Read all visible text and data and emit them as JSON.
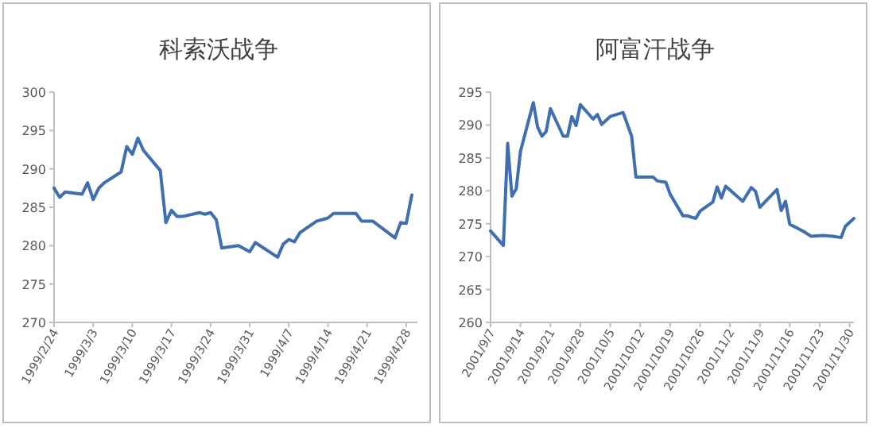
{
  "chart_data": [
    {
      "type": "line",
      "title": "科索沃战争",
      "x": [
        "1999-02-24",
        "1999-02-25",
        "1999-02-26",
        "1999-03-01",
        "1999-03-02",
        "1999-03-03",
        "1999-03-04",
        "1999-03-05",
        "1999-03-08",
        "1999-03-09",
        "1999-03-10",
        "1999-03-11",
        "1999-03-12",
        "1999-03-15",
        "1999-03-16",
        "1999-03-17",
        "1999-03-18",
        "1999-03-19",
        "1999-03-22",
        "1999-03-23",
        "1999-03-24",
        "1999-03-25",
        "1999-03-26",
        "1999-03-29",
        "1999-03-30",
        "1999-03-31",
        "1999-04-01",
        "1999-04-05",
        "1999-04-06",
        "1999-04-07",
        "1999-04-08",
        "1999-04-09",
        "1999-04-12",
        "1999-04-13",
        "1999-04-14",
        "1999-04-15",
        "1999-04-19",
        "1999-04-20",
        "1999-04-22",
        "1999-04-26",
        "1999-04-27",
        "1999-04-28",
        "1999-04-29"
      ],
      "series": [
        {
          "color": "#3f6fae",
          "values": [
            287.5,
            286.3,
            287.0,
            286.7,
            288.2,
            286.0,
            287.5,
            288.2,
            289.6,
            292.9,
            291.9,
            294.0,
            292.4,
            289.8,
            283.0,
            284.6,
            283.8,
            283.8,
            284.3,
            284.1,
            284.3,
            283.4,
            279.7,
            280.0,
            279.6,
            279.2,
            280.4,
            278.5,
            280.2,
            280.8,
            280.5,
            281.7,
            283.2,
            283.4,
            283.6,
            284.2,
            284.2,
            283.2,
            283.2,
            281.0,
            283.0,
            282.9,
            286.6
          ]
        }
      ],
      "xlim": [
        "1999-02-24",
        "1999-04-30"
      ],
      "xticks": [
        {
          "value": "1999-02-24",
          "label": "1999/2/24"
        },
        {
          "value": "1999-03-03",
          "label": "1999/3/3"
        },
        {
          "value": "1999-03-10",
          "label": "1999/3/10"
        },
        {
          "value": "1999-03-17",
          "label": "1999/3/17"
        },
        {
          "value": "1999-03-24",
          "label": "1999/3/24"
        },
        {
          "value": "1999-03-31",
          "label": "1999/3/31"
        },
        {
          "value": "1999-04-07",
          "label": "1999/4/7"
        },
        {
          "value": "1999-04-14",
          "label": "1999/4/14"
        },
        {
          "value": "1999-04-21",
          "label": "1999/4/21"
        },
        {
          "value": "1999-04-28",
          "label": "1999/4/28"
        }
      ],
      "ylim": [
        270,
        300
      ],
      "yticks": [
        270,
        275,
        280,
        285,
        290,
        295,
        300
      ],
      "grid": false
    },
    {
      "type": "line",
      "title": "阿富汗战争",
      "x": [
        "2001-09-07",
        "2001-09-10",
        "2001-09-11",
        "2001-09-12",
        "2001-09-13",
        "2001-09-14",
        "2001-09-17",
        "2001-09-18",
        "2001-09-19",
        "2001-09-20",
        "2001-09-21",
        "2001-09-24",
        "2001-09-25",
        "2001-09-26",
        "2001-09-27",
        "2001-09-28",
        "2001-10-01",
        "2001-10-02",
        "2001-10-03",
        "2001-10-05",
        "2001-10-08",
        "2001-10-10",
        "2001-10-11",
        "2001-10-15",
        "2001-10-16",
        "2001-10-18",
        "2001-10-19",
        "2001-10-22",
        "2001-10-23",
        "2001-10-25",
        "2001-10-26",
        "2001-10-29",
        "2001-10-30",
        "2001-10-31",
        "2001-11-01",
        "2001-11-05",
        "2001-11-07",
        "2001-11-08",
        "2001-11-09",
        "2001-11-13",
        "2001-11-14",
        "2001-11-15",
        "2001-11-16",
        "2001-11-19",
        "2001-11-21",
        "2001-11-24",
        "2001-11-26",
        "2001-11-28",
        "2001-11-29",
        "2001-12-01"
      ],
      "series": [
        {
          "color": "#3f6fae",
          "values": [
            273.9,
            271.7,
            287.2,
            279.2,
            280.3,
            286.0,
            293.4,
            289.7,
            288.3,
            289.0,
            292.5,
            288.3,
            288.3,
            291.3,
            289.9,
            293.1,
            290.9,
            291.6,
            290.1,
            291.3,
            291.9,
            288.3,
            282.1,
            282.1,
            281.5,
            281.3,
            279.5,
            276.2,
            276.2,
            275.8,
            276.9,
            278.3,
            280.6,
            278.9,
            280.7,
            278.4,
            280.5,
            279.9,
            277.5,
            280.2,
            277.0,
            278.4,
            274.9,
            273.9,
            273.1,
            273.2,
            273.1,
            272.9,
            274.6,
            275.8
          ]
        }
      ],
      "xlim": [
        "2001-09-07",
        "2001-12-01"
      ],
      "xticks": [
        {
          "value": "2001-09-07",
          "label": "2001/9/7"
        },
        {
          "value": "2001-09-14",
          "label": "2001/9/14"
        },
        {
          "value": "2001-09-21",
          "label": "2001/9/21"
        },
        {
          "value": "2001-09-28",
          "label": "2001/9/28"
        },
        {
          "value": "2001-10-05",
          "label": "2001/10/5"
        },
        {
          "value": "2001-10-12",
          "label": "2001/10/12"
        },
        {
          "value": "2001-10-19",
          "label": "2001/10/19"
        },
        {
          "value": "2001-10-26",
          "label": "2001/10/26"
        },
        {
          "value": "2001-11-02",
          "label": "2001/11/2"
        },
        {
          "value": "2001-11-09",
          "label": "2001/11/9"
        },
        {
          "value": "2001-11-16",
          "label": "2001/11/16"
        },
        {
          "value": "2001-11-23",
          "label": "2001/11/23"
        },
        {
          "value": "2001-11-30",
          "label": "2001/11/30"
        }
      ],
      "ylim": [
        260,
        295
      ],
      "yticks": [
        260,
        265,
        270,
        275,
        280,
        285,
        290,
        295
      ],
      "grid": false
    }
  ]
}
